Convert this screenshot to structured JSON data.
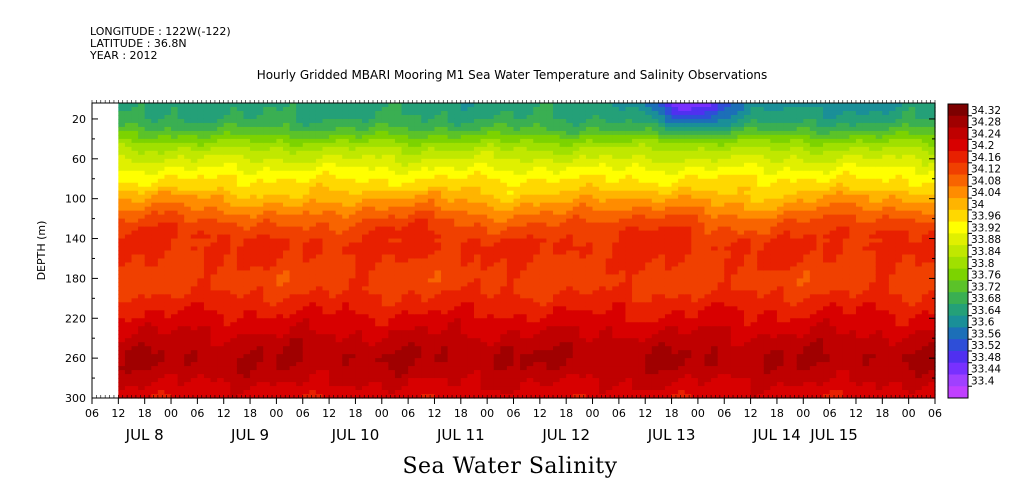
{
  "header": {
    "longitude": "LONGITUDE : 122W(-122)",
    "latitude": "LATITUDE : 36.8N",
    "year": "YEAR : 2012"
  },
  "chart_data": {
    "type": "heatmap",
    "title": "Hourly Gridded MBARI Mooring M1 Sea Water Temperature and Salinity Observations",
    "variable_title": "Sea Water Salinity",
    "ylabel": "DEPTH (m)",
    "y_axis_inverted": true,
    "ylim": [
      300,
      4
    ],
    "y_ticks": [
      20,
      60,
      100,
      140,
      180,
      220,
      260,
      300
    ],
    "x_range_hours": [
      -6,
      186
    ],
    "x_hour_labels": [
      "06",
      "12",
      "18",
      "00",
      "06",
      "12",
      "18",
      "00",
      "06",
      "12",
      "18",
      "00",
      "06",
      "12",
      "18",
      "00",
      "06",
      "12",
      "18",
      "00",
      "06",
      "12",
      "18",
      "00",
      "06",
      "12",
      "18",
      "00",
      "06",
      "12",
      "18",
      "00",
      "06"
    ],
    "x_day_labels": [
      "JUL  8",
      "JUL  9",
      "JUL 10",
      "JUL 11",
      "JUL 12",
      "JUL 13",
      "JUL 14",
      "JUL 15"
    ],
    "data_start_hour": 0,
    "colorbar": {
      "levels": [
        34.32,
        34.28,
        34.24,
        34.2,
        34.16,
        34.12,
        34.08,
        34.04,
        34,
        33.96,
        33.92,
        33.88,
        33.84,
        33.8,
        33.76,
        33.72,
        33.68,
        33.64,
        33.6,
        33.56,
        33.52,
        33.48,
        33.44,
        33.4
      ],
      "colors": [
        "#7d0000",
        "#a00000",
        "#bf0000",
        "#d80000",
        "#e82000",
        "#f04000",
        "#f86400",
        "#ff8c00",
        "#ffb400",
        "#ffd800",
        "#ffff00",
        "#e0f000",
        "#c0e800",
        "#a0e000",
        "#7cd300",
        "#5bc229",
        "#3aaf52",
        "#24a078",
        "#1a8f98",
        "#1c6fb8",
        "#2e4ed8",
        "#5030f0",
        "#7830ff",
        "#a040ff",
        "#c040ff"
      ]
    },
    "depth_profile": {
      "depths": [
        4,
        12,
        20,
        30,
        40,
        50,
        60,
        70,
        80,
        90,
        100,
        110,
        120,
        130,
        140,
        150,
        160,
        170,
        180,
        190,
        200,
        210,
        220,
        230,
        240,
        250,
        260,
        270,
        280,
        290,
        300
      ],
      "salinity": [
        33.66,
        33.67,
        33.68,
        33.72,
        33.78,
        33.84,
        33.88,
        33.92,
        33.96,
        33.99,
        34.03,
        34.07,
        34.11,
        34.14,
        34.16,
        34.17,
        34.16,
        34.15,
        34.14,
        34.15,
        34.17,
        34.19,
        34.21,
        34.23,
        34.25,
        34.27,
        34.28,
        34.27,
        34.25,
        34.23,
        34.21
      ]
    },
    "notes_visible": "Data begins near JUL 8 12Z; fresher (33.4-33.5) water near the surface around JUL 13."
  }
}
